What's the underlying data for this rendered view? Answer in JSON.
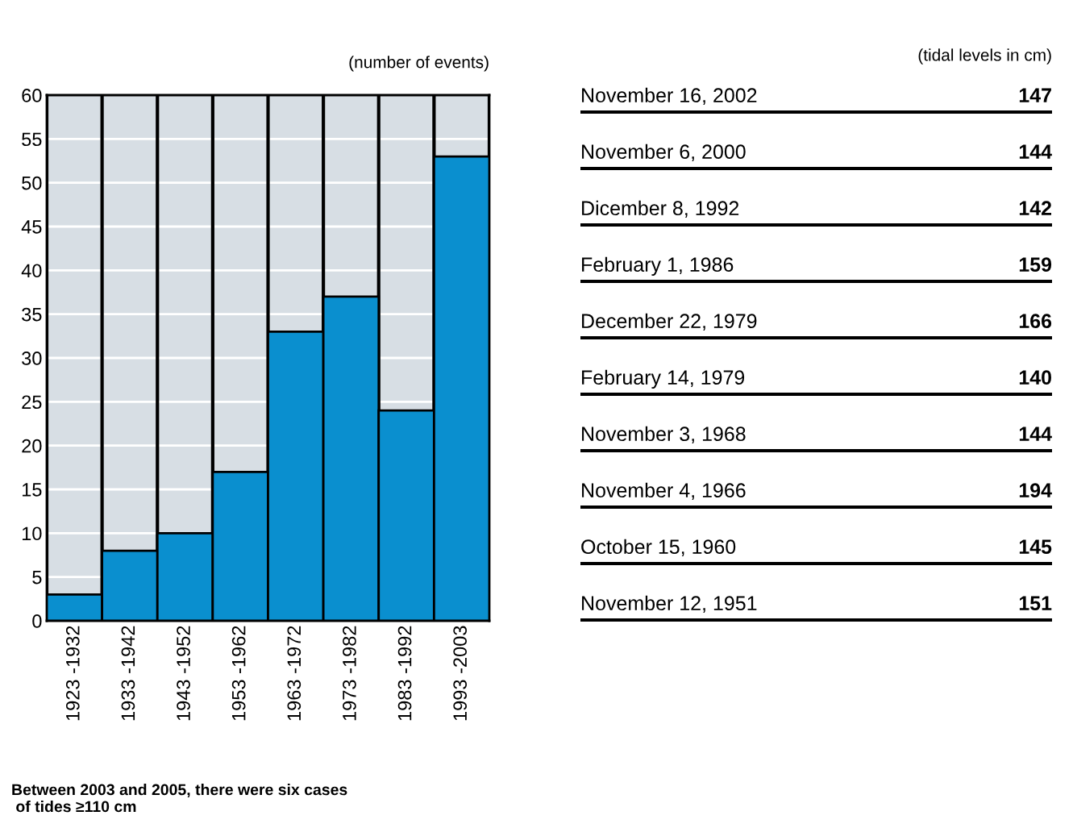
{
  "chart_data": [
    {
      "type": "bar",
      "ylabel": "(number of events)",
      "categories": [
        "1923 -1932",
        "1933 -1942",
        "1943 -1952",
        "1953 -1962",
        "1963 -1972",
        "1973 -1982",
        "1983 -1992",
        "1993 -2003"
      ],
      "values": [
        3,
        8,
        10,
        17,
        33,
        37,
        24,
        53
      ],
      "color": "#0a8fcf",
      "ylim": [
        0,
        60
      ],
      "yticks": [
        0,
        5,
        10,
        15,
        20,
        25,
        30,
        35,
        40,
        45,
        50,
        55,
        60
      ],
      "grid": "y",
      "annotations": [
        "Between 2003 and 2005, there were six cases\n of tides ≥110 cm"
      ]
    },
    {
      "type": "other",
      "ylabel": "(tidal levels in cm)",
      "categories": [
        "November 16, 2002",
        "November 6, 2000",
        "Dicember 8, 1992",
        "February 1, 1986",
        "December 22, 1979",
        "February 14, 1979",
        "November 3, 1968",
        "November 4, 1966",
        "October 15, 1960",
        "November 12, 1951"
      ],
      "values": [
        147,
        144,
        142,
        159,
        166,
        140,
        144,
        194,
        145,
        151
      ],
      "data_labels": true
    }
  ]
}
